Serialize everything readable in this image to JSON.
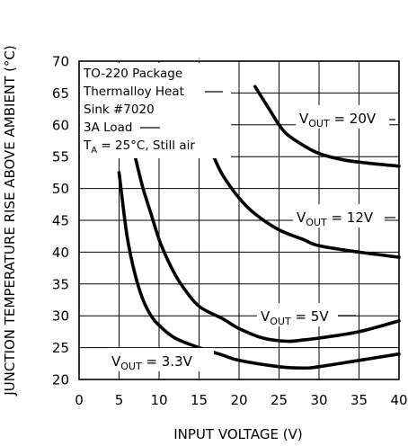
{
  "chart_data": {
    "type": "line",
    "xlabel": "INPUT VOLTAGE (V)",
    "ylabel": "JUNCTION TEMPERATURE RISE ABOVE AMBIENT (°C)",
    "xlim": [
      0,
      40
    ],
    "ylim": [
      20,
      70
    ],
    "xticks": [
      0,
      5,
      10,
      15,
      20,
      25,
      30,
      35,
      40
    ],
    "yticks": [
      20,
      25,
      30,
      35,
      40,
      45,
      50,
      55,
      60,
      65,
      70
    ],
    "xtick_labels": [
      "0",
      "5",
      "10",
      "15",
      "20",
      "25",
      "30",
      "35",
      "40"
    ],
    "ytick_labels": [
      "20",
      "25",
      "30",
      "35",
      "40",
      "45",
      "50",
      "55",
      "60",
      "65",
      "70"
    ],
    "grid": true,
    "annotation": {
      "lines": [
        "TO-220 Package",
        "Thermalloy Heat",
        "Sink #7020",
        "3A Load"
      ],
      "condition_prefix": "T",
      "condition_sub": "A",
      "condition_rest": " = 25°C, Still air"
    },
    "series": [
      {
        "label_main": "V",
        "label_sub": "OUT",
        "label_rest": " = 3.3V",
        "x": [
          5,
          6,
          7,
          8,
          9,
          10,
          12,
          15,
          18,
          20,
          25,
          28,
          30,
          35,
          40
        ],
        "y": [
          52.5,
          42.5,
          36.5,
          32.5,
          30.0,
          28.5,
          26.5,
          25.0,
          23.8,
          23.0,
          22.0,
          21.8,
          22.0,
          23.0,
          24.0
        ]
      },
      {
        "label_main": "V",
        "label_sub": "OUT",
        "label_rest": " = 5V",
        "x": [
          7,
          8,
          9,
          10,
          11,
          12,
          13,
          15,
          18,
          20,
          23,
          26,
          28,
          30,
          35,
          40
        ],
        "y": [
          55.0,
          50.0,
          46.0,
          42.0,
          39.0,
          36.5,
          34.5,
          31.5,
          29.5,
          28.0,
          26.5,
          26.0,
          26.2,
          26.5,
          27.5,
          29.2
        ]
      },
      {
        "label_main": "V",
        "label_sub": "OUT",
        "label_rest": " = 12V",
        "x": [
          14.5,
          15,
          16,
          17,
          18,
          20,
          22,
          25,
          28,
          30,
          35,
          40
        ],
        "y": [
          63.0,
          61.0,
          57.5,
          54.5,
          52.0,
          48.5,
          46.0,
          43.5,
          42.0,
          41.0,
          40.0,
          39.2
        ]
      },
      {
        "label_main": "V",
        "label_sub": "OUT",
        "label_rest": " = 20V",
        "x": [
          22,
          23,
          24,
          25,
          26,
          28,
          30,
          33,
          36,
          40
        ],
        "y": [
          66.0,
          64.0,
          62.0,
          60.0,
          58.5,
          56.8,
          55.5,
          54.5,
          54.0,
          53.5
        ]
      }
    ]
  }
}
